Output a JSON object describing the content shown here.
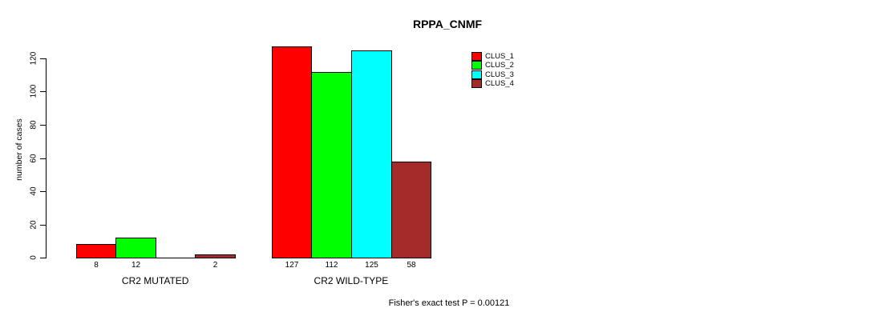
{
  "chart_data": {
    "type": "bar",
    "title": "RPPA_CNMF",
    "ylabel": "number of cases",
    "xlabel": "",
    "footnote": "Fisher's exact test P = 0.00121",
    "categories": [
      "CR2 MUTATED",
      "CR2 WILD-TYPE"
    ],
    "series": [
      {
        "name": "CLUS_1",
        "color": "#ff0000",
        "values": [
          8,
          127
        ]
      },
      {
        "name": "CLUS_2",
        "color": "#00ff00",
        "values": [
          12,
          112
        ]
      },
      {
        "name": "CLUS_3",
        "color": "#00ffff",
        "values": [
          0,
          125
        ]
      },
      {
        "name": "CLUS_4",
        "color": "#a52a2a",
        "values": [
          2,
          58
        ]
      }
    ],
    "bar_value_labels": {
      "shown": true,
      "hide_zero": true
    },
    "ylim": [
      0,
      120
    ],
    "yticks": [
      0,
      20,
      40,
      60,
      80,
      100,
      120
    ],
    "grid": false,
    "legend_position": "top-right",
    "bar_border_color": "#000000",
    "axis_color": "#000000",
    "text_color": "#000000",
    "background": "#ffffff"
  }
}
